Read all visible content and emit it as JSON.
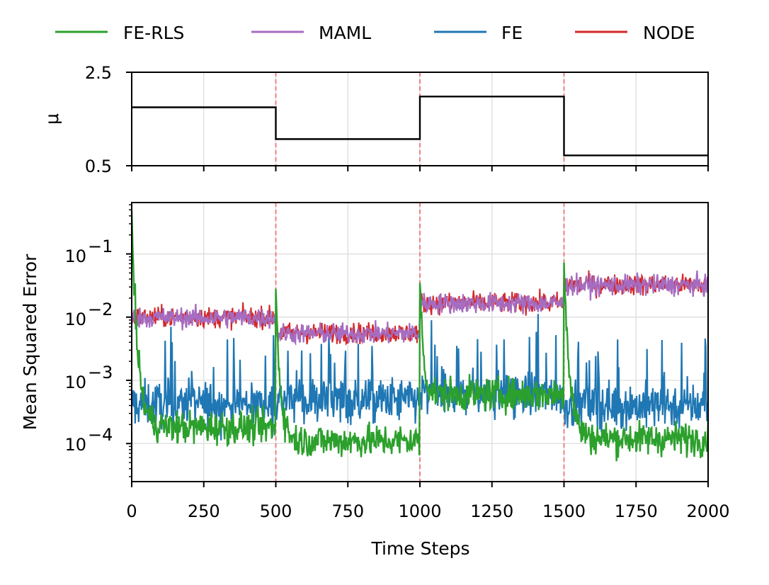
{
  "chart_data": [
    {
      "type": "line",
      "panel": "top",
      "xlabel": "",
      "ylabel": "μ",
      "xlim": [
        0,
        2000
      ],
      "ylim": [
        0.5,
        2.5
      ],
      "yticks": [
        0.5,
        2.5
      ],
      "ytick_labels": [
        "0.5",
        "2.5"
      ],
      "grid": true,
      "series": [
        {
          "color": "#000000",
          "segments": [
            {
              "x": [
                0,
                500
              ],
              "y": 1.75
            },
            {
              "x": [
                500,
                1000
              ],
              "y": 1.07
            },
            {
              "x": [
                1000,
                1500
              ],
              "y": 1.98
            },
            {
              "x": [
                1500,
                2000
              ],
              "y": 0.72
            }
          ]
        }
      ],
      "vlines": [
        500,
        1000,
        1500
      ],
      "vline_color": "#f08080"
    },
    {
      "type": "line",
      "panel": "bottom",
      "xlabel": "Time Steps",
      "ylabel": "Mean Squared Error",
      "xlim": [
        0,
        2000
      ],
      "ylim": [
        2.5e-05,
        0.65
      ],
      "yscale": "log",
      "xticks": [
        0,
        250,
        500,
        750,
        1000,
        1250,
        1500,
        1750,
        2000
      ],
      "xtick_labels": [
        "0",
        "250",
        "500",
        "750",
        "1000",
        "1250",
        "1500",
        "1750",
        "2000"
      ],
      "yticks": [
        0.0001,
        0.001,
        0.01,
        0.1
      ],
      "ytick_labels": [
        {
          "base": "10",
          "exp": "−4"
        },
        {
          "base": "10",
          "exp": "−3"
        },
        {
          "base": "10",
          "exp": "−2"
        },
        {
          "base": "10",
          "exp": "−1"
        }
      ],
      "grid": true,
      "vlines": [
        500,
        1000,
        1500
      ],
      "vline_color": "#f08080",
      "legend_position": "top, outside, single row",
      "series": [
        {
          "name": "FE-RLS",
          "color": "#2ca02c",
          "segments": [
            {
              "x0": 0,
              "peak": 0.5,
              "tau": 20,
              "floor": 0.00018
            },
            {
              "x0": 500,
              "peak": 0.027,
              "tau": 16,
              "floor": 0.00011
            },
            {
              "x0": 1000,
              "peak": 0.04,
              "tau": 12,
              "floor": 0.0006
            },
            {
              "x0": 1500,
              "peak": 0.08,
              "tau": 20,
              "floor": 0.00012
            }
          ]
        },
        {
          "name": "MAML",
          "color": "#a56cc1",
          "segments": [
            {
              "x0": 0,
              "level": 0.0098
            },
            {
              "x0": 500,
              "level": 0.0055
            },
            {
              "x0": 1000,
              "level": 0.0165
            },
            {
              "x0": 1500,
              "level": 0.032
            }
          ]
        },
        {
          "name": "FE",
          "color": "#1f77b4",
          "segments": [
            {
              "x0": 0,
              "level": 0.00042
            },
            {
              "x0": 500,
              "level": 0.00048
            },
            {
              "x0": 1000,
              "level": 0.0006
            },
            {
              "x0": 1500,
              "level": 0.0004
            }
          ]
        },
        {
          "name": "NODE",
          "color": "#d62728",
          "segments": [
            {
              "x0": 0,
              "level": 0.01
            },
            {
              "x0": 500,
              "level": 0.0056
            },
            {
              "x0": 1000,
              "level": 0.0168
            },
            {
              "x0": 1500,
              "level": 0.0325
            }
          ]
        }
      ]
    }
  ],
  "legend": [
    {
      "label": "FE-RLS",
      "color": "#2ca02c"
    },
    {
      "label": "MAML",
      "color": "#a56cc1"
    },
    {
      "label": "FE",
      "color": "#1f77b4"
    },
    {
      "label": "NODE",
      "color": "#d62728"
    }
  ]
}
